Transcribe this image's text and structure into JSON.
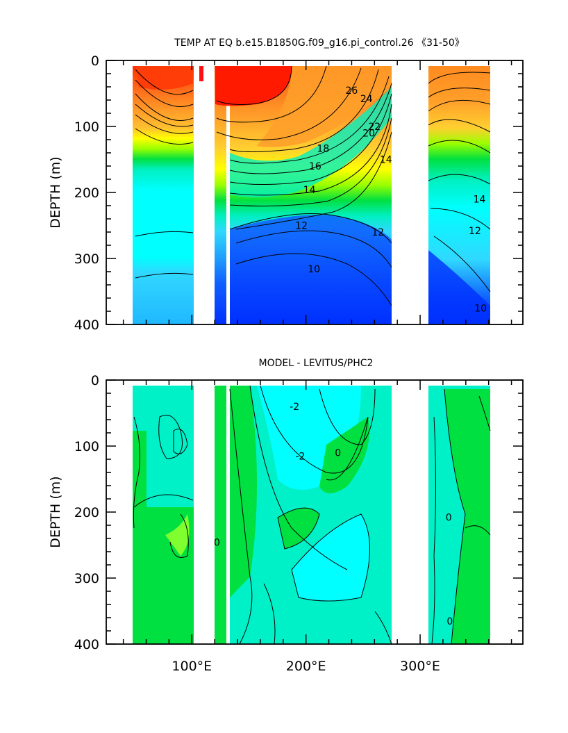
{
  "chart_data": [
    {
      "type": "heatmap",
      "title": "TEMP AT EQ b.e15.B1850G.f09_g16.pi_control.26 《31-50》",
      "ylabel": "DEPTH (m)",
      "xlabel": "",
      "xlim": [
        25,
        390
      ],
      "ylim": [
        400,
        0
      ],
      "y_ticks": [
        0,
        100,
        200,
        300,
        400
      ],
      "x_ticks": [
        100,
        200,
        300
      ],
      "x_tick_labels": [
        "",
        "",
        ""
      ],
      "grid": false,
      "land_gaps_lon": [
        [
          98,
          117
        ],
        [
          120,
          128
        ],
        [
          278,
          313
        ],
        [
          368,
          390
        ],
        [
          25,
          43
        ]
      ],
      "contour_labels": [
        {
          "text": "26",
          "lon": 240,
          "depth": 45
        },
        {
          "text": "24",
          "lon": 253,
          "depth": 58
        },
        {
          "text": "22",
          "lon": 260,
          "depth": 100
        },
        {
          "text": "20",
          "lon": 255,
          "depth": 110
        },
        {
          "text": "18",
          "lon": 215,
          "depth": 133
        },
        {
          "text": "16",
          "lon": 208,
          "depth": 160
        },
        {
          "text": "14",
          "lon": 203,
          "depth": 196
        },
        {
          "text": "12",
          "lon": 196,
          "depth": 250
        },
        {
          "text": "14",
          "lon": 270,
          "depth": 150
        },
        {
          "text": "12",
          "lon": 263,
          "depth": 260
        },
        {
          "text": "10",
          "lon": 207,
          "depth": 316
        },
        {
          "text": "14",
          "lon": 352,
          "depth": 210
        },
        {
          "text": "12",
          "lon": 348,
          "depth": 258
        },
        {
          "text": "10",
          "lon": 353,
          "depth": 375
        }
      ],
      "colors": [
        "#ff3000",
        "#ff6a1a",
        "#ff9a28",
        "#ffc030",
        "#ffff00",
        "#9aff00",
        "#00e040",
        "#00f0c0",
        "#00ffff",
        "#30d8ff",
        "#20a0ff",
        "#1060ff",
        "#0030ff",
        "#2000c0"
      ]
    },
    {
      "type": "heatmap",
      "title": "MODEL - LEVITUS/PHC2",
      "ylabel": "DEPTH (m)",
      "xlabel": "",
      "xlim": [
        25,
        390
      ],
      "ylim": [
        400,
        0
      ],
      "y_ticks": [
        0,
        100,
        200,
        300,
        400
      ],
      "x_ticks": [
        100,
        200,
        300
      ],
      "x_tick_labels": [
        "100°E",
        "200°E",
        "300°E"
      ],
      "grid": false,
      "land_gaps_lon": [
        [
          98,
          106
        ],
        [
          110,
          117
        ],
        [
          120,
          123
        ],
        [
          125,
          128
        ],
        [
          278,
          313
        ],
        [
          368,
          390
        ],
        [
          25,
          43
        ]
      ],
      "contour_labels": [
        {
          "text": "-2",
          "lon": 190,
          "depth": 40
        },
        {
          "text": "-2",
          "lon": 195,
          "depth": 115
        },
        {
          "text": "0",
          "lon": 228,
          "depth": 110
        },
        {
          "text": "0",
          "lon": 122,
          "depth": 246
        },
        {
          "text": "0",
          "lon": 325,
          "depth": 208
        },
        {
          "text": "0",
          "lon": 326,
          "depth": 365
        }
      ],
      "colors": [
        "#00ffff",
        "#00f0c8",
        "#00e040",
        "#80ff30"
      ]
    }
  ]
}
